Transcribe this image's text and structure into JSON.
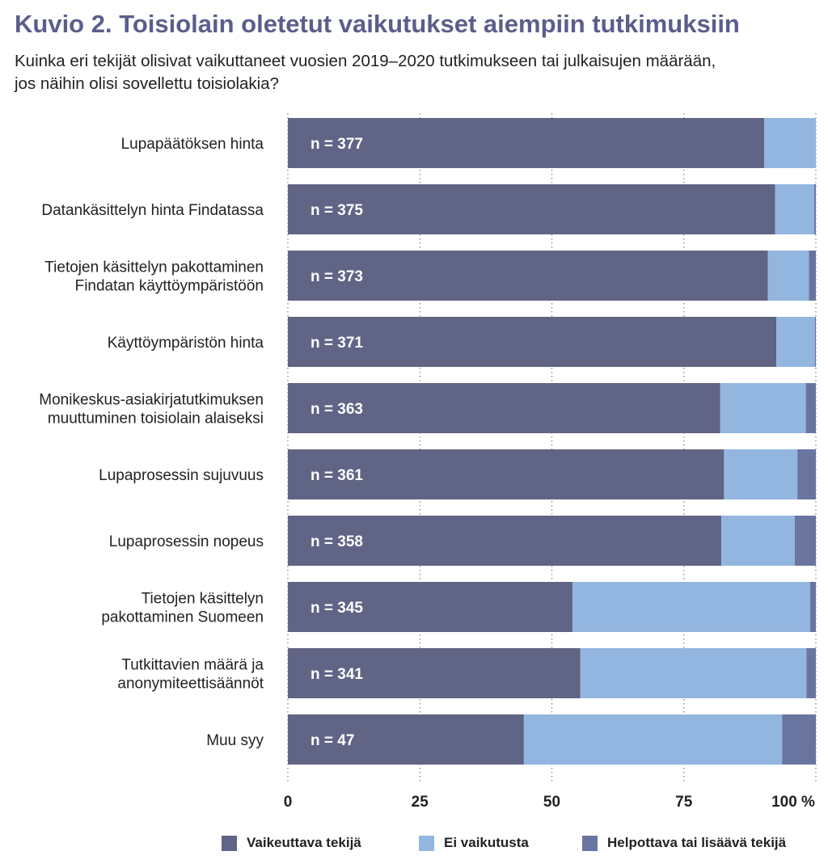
{
  "title": "Kuvio 2. Toisiolain oletetut vaikutukset aiempiin tutkimuksiin",
  "subtitle": "Kuinka eri tekijät olisivat vaikuttaneet vuosien 2019–2020 tutkimukseen tai julkaisujen määrään, jos näihin olisi sovellettu toisiolakia?",
  "colors": {
    "vaikuttava": "#606485",
    "ei_vaikutusta": "#93b6e0",
    "helpottava": "#6a759f",
    "grid": "#888888",
    "text": "#222222",
    "title": "#5b5e8b"
  },
  "chart_data": {
    "type": "bar",
    "orientation": "horizontal",
    "stacked": true,
    "categories": [
      [
        "Lupapäätöksen hinta"
      ],
      [
        "Datankäsittelyn hinta Findatassa"
      ],
      [
        "Tietojen käsittelyn pakottaminen",
        "Findatan käyttöympäristöön"
      ],
      [
        "Käyttöympäristön hinta"
      ],
      [
        "Monikeskus-asiakirjatutkimuksen",
        "muuttuminen toisiolain alaiseksi"
      ],
      [
        "Lupaprosessin sujuvuus"
      ],
      [
        "Lupaprosessin nopeus"
      ],
      [
        "Tietojen käsittelyn",
        "pakottaminen Suomeen"
      ],
      [
        "Tutkittavien määrä ja",
        "anonymiteettisäännöt"
      ],
      [
        "Muu syy"
      ]
    ],
    "n_labels": [
      "n = 377",
      "n = 375",
      "n = 373",
      "n = 371",
      "n = 363",
      "n = 361",
      "n = 358",
      "n = 345",
      "n = 341",
      "n = 47"
    ],
    "series": [
      {
        "name": "Vaikeuttava tekijä",
        "color": "#606485",
        "values": [
          90.2,
          92.3,
          90.9,
          92.5,
          81.9,
          82.6,
          82.1,
          53.9,
          55.4,
          44.7
        ]
      },
      {
        "name": "Ei vaikutusta",
        "color": "#93b6e0",
        "values": [
          9.8,
          7.4,
          7.8,
          7.3,
          16.2,
          13.9,
          13.9,
          45.0,
          42.8,
          48.9
        ]
      },
      {
        "name": "Helpottava tai lisäävä tekijä",
        "color": "#6a759f",
        "values": [
          0.0,
          0.3,
          1.3,
          0.2,
          1.9,
          3.5,
          4.0,
          1.1,
          1.8,
          6.4
        ]
      }
    ],
    "xticks": [
      "0",
      "25",
      "50",
      "75",
      "100 %"
    ],
    "xtick_values": [
      0,
      25,
      50,
      75,
      100
    ],
    "xlim": [
      0,
      100
    ],
    "grid": "vertical dotted",
    "legend_position": "bottom"
  }
}
